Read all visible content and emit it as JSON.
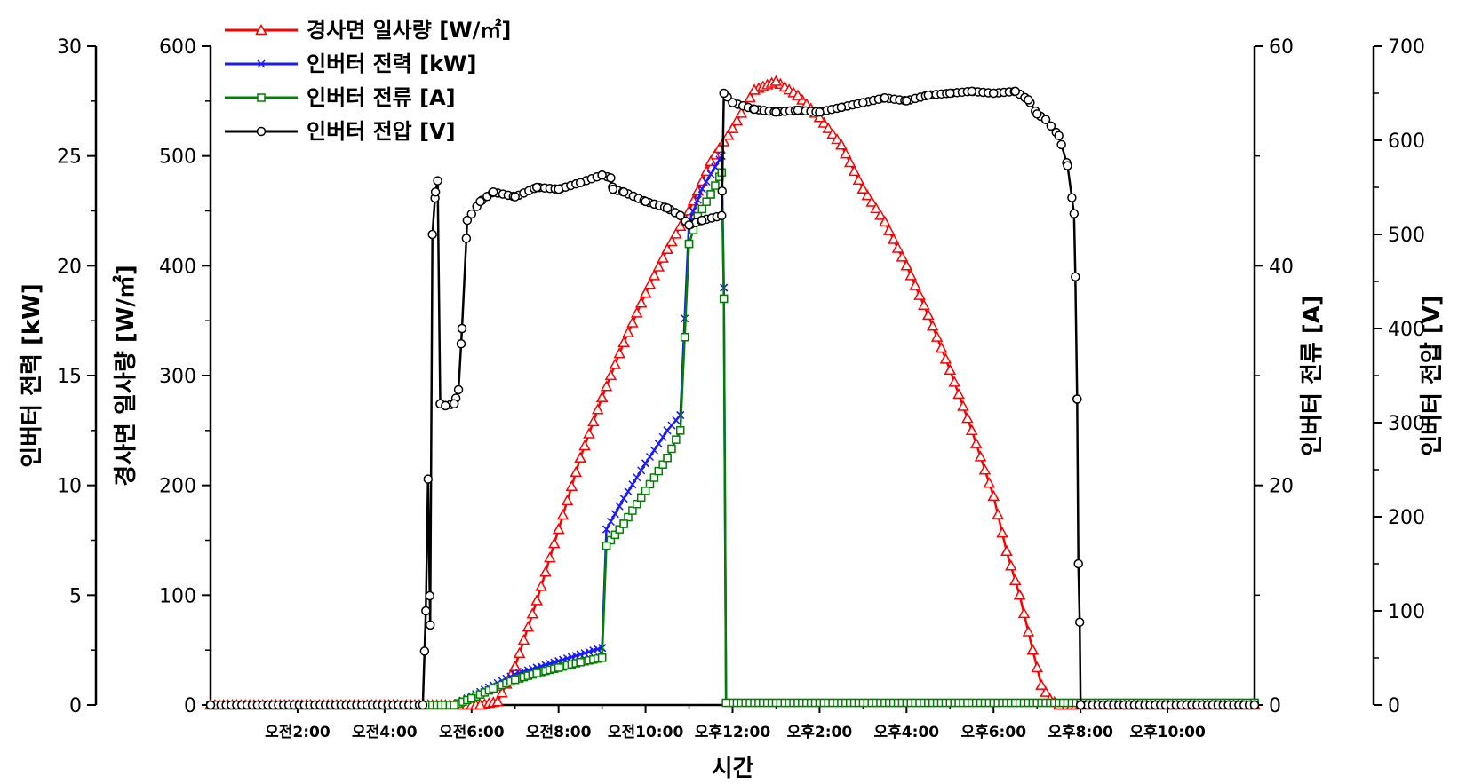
{
  "chart_data": {
    "type": "line",
    "xlabel": "시간",
    "x_unit": "hours since midnight",
    "xlim": [
      0,
      24
    ],
    "x_ticks": [
      {
        "x": 2,
        "label": "오전2:00"
      },
      {
        "x": 4,
        "label": "오전4:00"
      },
      {
        "x": 6,
        "label": "오전6:00"
      },
      {
        "x": 8,
        "label": "오전8:00"
      },
      {
        "x": 10,
        "label": "오전10:00"
      },
      {
        "x": 12,
        "label": "오후12:00"
      },
      {
        "x": 14,
        "label": "오후2:00"
      },
      {
        "x": 16,
        "label": "오후4:00"
      },
      {
        "x": 18,
        "label": "오후6:00"
      },
      {
        "x": 20,
        "label": "오후8:00"
      },
      {
        "x": 22,
        "label": "오후10:00"
      }
    ],
    "axes": {
      "power": {
        "label": "인버터 전력 [kW]",
        "range": [
          0,
          30
        ],
        "ticks": [
          "0",
          "5",
          "10",
          "15",
          "20",
          "25",
          "30"
        ],
        "position": "left-outer"
      },
      "irradiance": {
        "label": "경사면 일사량 [W/㎡]",
        "range": [
          0,
          600
        ],
        "ticks": [
          "0",
          "100",
          "200",
          "300",
          "400",
          "500",
          "600"
        ],
        "position": "left-inner"
      },
      "current": {
        "label": "인버터 전류 [A]",
        "range": [
          0,
          60
        ],
        "ticks": [
          "0",
          "20",
          "40",
          "60"
        ],
        "position": "right-inner"
      },
      "voltage": {
        "label": "인버터 전압 [V]",
        "range": [
          0,
          700
        ],
        "ticks": [
          "0",
          "100",
          "200",
          "300",
          "400",
          "500",
          "600",
          "700"
        ],
        "position": "right-outer"
      }
    },
    "legend_position": "top-left",
    "series": [
      {
        "name": "경사면 일사량 [W/㎡]",
        "axis": "irradiance",
        "color": "#ff0000",
        "marker": "triangle",
        "points": [
          [
            0,
            0
          ],
          [
            6.2,
            0
          ],
          [
            6.6,
            3
          ],
          [
            7,
            35
          ],
          [
            7.5,
            95
          ],
          [
            8,
            160
          ],
          [
            8.5,
            225
          ],
          [
            9,
            280
          ],
          [
            9.5,
            330
          ],
          [
            10,
            375
          ],
          [
            10.5,
            415
          ],
          [
            11,
            450
          ],
          [
            11.5,
            495
          ],
          [
            12,
            525
          ],
          [
            12.5,
            560
          ],
          [
            13,
            568
          ],
          [
            13.5,
            555
          ],
          [
            14,
            535
          ],
          [
            14.5,
            510
          ],
          [
            15,
            470
          ],
          [
            15.5,
            440
          ],
          [
            16,
            400
          ],
          [
            16.5,
            355
          ],
          [
            17,
            305
          ],
          [
            17.5,
            250
          ],
          [
            18,
            190
          ],
          [
            18.3,
            140
          ],
          [
            18.6,
            100
          ],
          [
            18.9,
            50
          ],
          [
            19.1,
            18
          ],
          [
            19.3,
            5
          ],
          [
            19.5,
            0
          ],
          [
            24,
            0
          ]
        ]
      },
      {
        "name": "인버터 전력 [kW]",
        "axis": "power",
        "color": "#1a1aff",
        "marker": "x",
        "points": [
          [
            0,
            0
          ],
          [
            5.6,
            0
          ],
          [
            6,
            0.4
          ],
          [
            6.5,
            0.9
          ],
          [
            7,
            1.4
          ],
          [
            7.5,
            1.7
          ],
          [
            8,
            2.0
          ],
          [
            8.5,
            2.3
          ],
          [
            9,
            2.6
          ],
          [
            9.1,
            8
          ],
          [
            9.5,
            9.4
          ],
          [
            10,
            11.0
          ],
          [
            10.5,
            12.5
          ],
          [
            10.8,
            13.2
          ],
          [
            11,
            22
          ],
          [
            11.3,
            23.5
          ],
          [
            11.6,
            24.5
          ],
          [
            11.75,
            25.0
          ],
          [
            11.8,
            19
          ],
          [
            11.85,
            0.1
          ],
          [
            24,
            0.1
          ]
        ]
      },
      {
        "name": "인버터 전류 [A]",
        "axis": "current",
        "color": "#008000",
        "marker": "square",
        "points": [
          [
            0,
            0
          ],
          [
            5.6,
            0
          ],
          [
            6,
            0.6
          ],
          [
            6.5,
            1.5
          ],
          [
            7,
            2.3
          ],
          [
            7.5,
            2.9
          ],
          [
            8,
            3.4
          ],
          [
            8.5,
            3.9
          ],
          [
            9,
            4.3
          ],
          [
            9.1,
            14.5
          ],
          [
            9.5,
            16.5
          ],
          [
            10,
            19.5
          ],
          [
            10.5,
            22.5
          ],
          [
            10.8,
            25
          ],
          [
            11,
            42
          ],
          [
            11.2,
            44.5
          ],
          [
            11.5,
            46.5
          ],
          [
            11.75,
            48.5
          ],
          [
            11.8,
            37
          ],
          [
            11.85,
            0.2
          ],
          [
            24,
            0.2
          ]
        ]
      },
      {
        "name": "인버터 전압 [V]",
        "axis": "voltage",
        "color": "#000000",
        "marker": "circle",
        "points": [
          [
            0,
            0
          ],
          [
            4.88,
            0
          ],
          [
            4.95,
            100
          ],
          [
            5.0,
            240
          ],
          [
            5.05,
            85
          ],
          [
            5.1,
            500
          ],
          [
            5.17,
            545
          ],
          [
            5.22,
            557
          ],
          [
            5.28,
            320
          ],
          [
            5.4,
            318
          ],
          [
            5.6,
            320
          ],
          [
            5.7,
            335
          ],
          [
            5.78,
            400
          ],
          [
            5.9,
            515
          ],
          [
            6.2,
            535
          ],
          [
            6.5,
            545
          ],
          [
            7,
            540
          ],
          [
            7.5,
            550
          ],
          [
            8,
            548
          ],
          [
            8.5,
            555
          ],
          [
            9,
            563
          ],
          [
            9.2,
            560
          ],
          [
            9.25,
            548
          ],
          [
            9.5,
            545
          ],
          [
            10,
            535
          ],
          [
            10.5,
            528
          ],
          [
            10.8,
            520
          ],
          [
            11,
            510
          ],
          [
            11.3,
            515
          ],
          [
            11.75,
            520
          ],
          [
            11.8,
            650
          ],
          [
            12,
            640
          ],
          [
            12.5,
            633
          ],
          [
            13,
            630
          ],
          [
            13.5,
            632
          ],
          [
            14,
            630
          ],
          [
            14.5,
            635
          ],
          [
            15,
            640
          ],
          [
            15.5,
            645
          ],
          [
            16,
            642
          ],
          [
            16.5,
            648
          ],
          [
            17,
            650
          ],
          [
            17.5,
            652
          ],
          [
            18,
            650
          ],
          [
            18.5,
            652
          ],
          [
            18.8,
            643
          ],
          [
            19,
            628
          ],
          [
            19.2,
            622
          ],
          [
            19.5,
            605
          ],
          [
            19.7,
            573
          ],
          [
            19.85,
            522
          ],
          [
            19.88,
            455
          ],
          [
            19.92,
            325
          ],
          [
            19.95,
            150
          ],
          [
            19.98,
            88
          ],
          [
            20.0,
            0
          ],
          [
            24,
            0
          ]
        ]
      }
    ]
  }
}
